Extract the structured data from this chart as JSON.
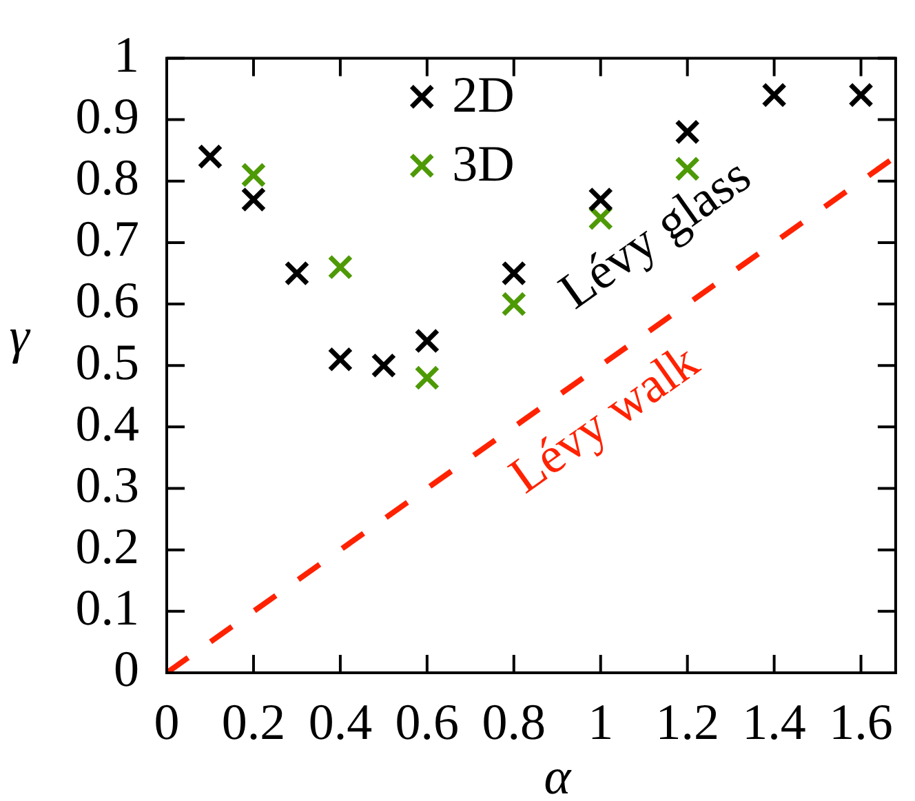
{
  "chart_data": {
    "type": "scatter",
    "xlabel": "α",
    "ylabel": "γ",
    "xlim": [
      0,
      1.68
    ],
    "ylim": [
      0,
      1
    ],
    "xticks": [
      0,
      0.2,
      0.4,
      0.6,
      0.8,
      1,
      1.2,
      1.4,
      1.6
    ],
    "yticks": [
      0,
      0.1,
      0.2,
      0.3,
      0.4,
      0.5,
      0.6,
      0.7,
      0.8,
      0.9,
      1
    ],
    "marker": "cross",
    "legend": "top",
    "series": [
      {
        "name": "2D",
        "color": "#000000",
        "x": [
          0.1,
          0.2,
          0.3,
          0.4,
          0.5,
          0.6,
          0.8,
          1,
          1.2,
          1.4,
          1.6
        ],
        "values": [
          0.84,
          0.77,
          0.65,
          0.51,
          0.5,
          0.54,
          0.65,
          0.77,
          0.88,
          0.94,
          0.94
        ]
      },
      {
        "name": "3D",
        "color": "#4e9a06",
        "x": [
          0.2,
          0.4,
          0.6,
          0.8,
          1,
          1.2
        ],
        "values": [
          0.81,
          0.66,
          0.48,
          0.6,
          0.74,
          0.82
        ]
      },
      {
        "name": "Lévy walk",
        "type": "line",
        "color": "#ff2200",
        "marker": "none",
        "line_style": "dashed",
        "x": [
          0,
          1.68
        ],
        "values": [
          0,
          0.84
        ]
      }
    ],
    "annotations": [
      "Lévy glass"
    ]
  }
}
